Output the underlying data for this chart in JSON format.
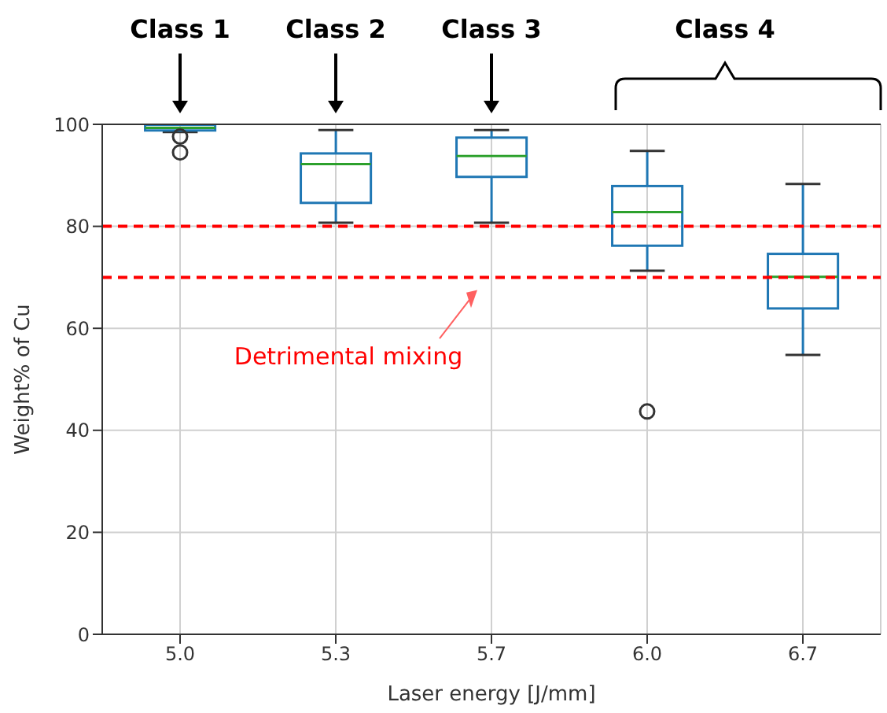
{
  "chart_data": {
    "type": "box",
    "xlabel": "Laser energy [J/mm]",
    "ylabel": "Weight% of Cu",
    "categories": [
      "5.0",
      "5.3",
      "5.7",
      "6.0",
      "6.7"
    ],
    "color": "#1f77b4",
    "boxes": [
      {
        "low": 98.5,
        "q1": 98.8,
        "median": 99.3,
        "q3": 99.9,
        "high": 100,
        "outliers": [
          97.6,
          94.5
        ]
      },
      {
        "low": 80.7,
        "q1": 84.6,
        "median": 92.2,
        "q3": 94.3,
        "high": 98.9
      },
      {
        "low": 80.7,
        "q1": 89.7,
        "median": 93.8,
        "q3": 97.4,
        "high": 98.9
      },
      {
        "low": 71.3,
        "q1": 76.2,
        "median": 82.8,
        "q3": 87.9,
        "high": 94.8,
        "outliers": [
          43.7
        ]
      },
      {
        "low": 54.8,
        "q1": 63.9,
        "median": 70.1,
        "q3": 74.6,
        "high": 88.3
      }
    ],
    "ylim": [
      0,
      100
    ],
    "yticks": [
      0,
      20,
      40,
      60,
      80,
      100
    ],
    "grid": true,
    "ref_lines": [
      {
        "axis": "y",
        "value": 80,
        "color": "#ff0000",
        "line_style": "dashed"
      },
      {
        "axis": "y",
        "value": 70,
        "color": "#ff0000",
        "line_style": "dashed"
      }
    ],
    "annotations": [
      "Class 1",
      "Class 2",
      "Class 3",
      "Class 4",
      "Detrimental mixing"
    ]
  }
}
